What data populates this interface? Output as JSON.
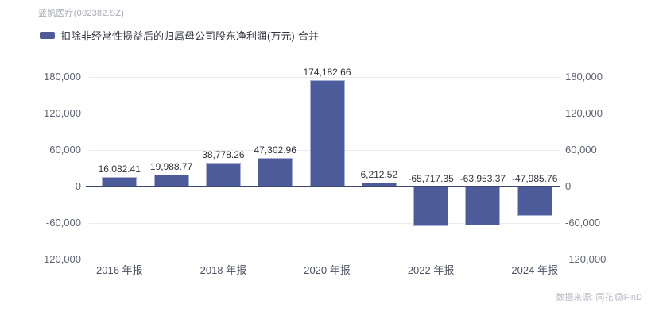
{
  "header": {
    "title": "蓝帆医疗(002382.SZ)"
  },
  "legend": {
    "label": "扣除非经常性损益后的归属母公司股东净利润(万元)-合并",
    "marker_color": "#4e5b9a"
  },
  "footer": {
    "source": "数据来源: 同花顺iFinD"
  },
  "chart_data": {
    "type": "bar",
    "title": "蓝帆医疗(002382.SZ)",
    "series_name": "扣除非经常性损益后的归属母公司股东净利润(万元)-合并",
    "unit": "万元",
    "values": [
      16082.41,
      19988.77,
      38778.26,
      47302.96,
      174182.66,
      6212.52,
      -65717.35,
      -63953.37,
      -47985.76
    ],
    "value_labels": [
      "16,082.41",
      "19,988.77",
      "38,778.26",
      "47,302.96",
      "174,182.66",
      "6,212.52",
      "-65,717.35",
      "-63,953.37",
      "-47,985.76"
    ],
    "x_ticks": [
      {
        "index": 0,
        "label": "2016 年报"
      },
      {
        "index": 2,
        "label": "2018 年报"
      },
      {
        "index": 4,
        "label": "2020 年报"
      },
      {
        "index": 6,
        "label": "2022 年报"
      },
      {
        "index": 8,
        "label": "2024 年报"
      }
    ],
    "y_ticks": [
      {
        "value": 180000,
        "label": "180,000"
      },
      {
        "value": 120000,
        "label": "120,000"
      },
      {
        "value": 60000,
        "label": "60,000"
      },
      {
        "value": 0,
        "label": "0"
      },
      {
        "value": -60000,
        "label": "-60,000"
      },
      {
        "value": -120000,
        "label": "-120,000"
      }
    ],
    "ylim": [
      -120000,
      180000
    ],
    "grid": true,
    "legend_position": "top-left",
    "bar_color": "#4e5b9a",
    "bar_border_color": "#a9b0d4",
    "zero_line_color": "#3d4871",
    "grid_line_color": "#e9ebf3"
  }
}
